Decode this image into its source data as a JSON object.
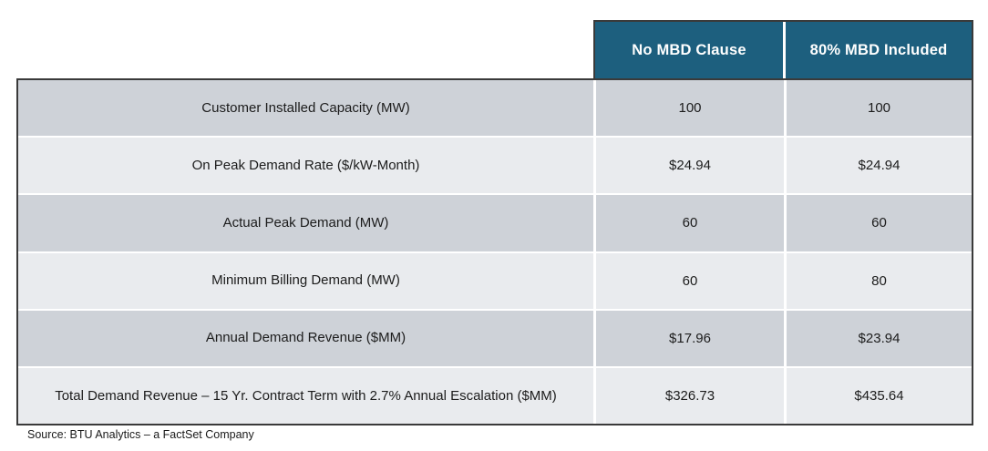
{
  "chart_data": {
    "type": "table",
    "columns": [
      "",
      "No MBD Clause",
      "80% MBD Included"
    ],
    "rows": [
      [
        "Customer Installed Capacity (MW)",
        "100",
        "100"
      ],
      [
        "On Peak Demand Rate ($/kW-Month)",
        "$24.94",
        "$24.94"
      ],
      [
        "Actual Peak Demand (MW)",
        "60",
        "60"
      ],
      [
        "Minimum Billing Demand (MW)",
        "60",
        "80"
      ],
      [
        "Annual Demand Revenue ($MM)",
        "$17.96",
        "$23.94"
      ],
      [
        "Total Demand Revenue – 15 Yr. Contract Term with 2.7% Annual Escalation ($MM)",
        "$326.73",
        "$435.64"
      ]
    ],
    "source": "Source: BTU Analytics – a FactSet Company",
    "layout_hints": {
      "header_position": "top-right over value columns",
      "row_striping": "alternating"
    }
  },
  "colors": {
    "header_bg": "#1d5f7e",
    "header_text": "#ffffff",
    "row_dark": "#ced2d8",
    "row_light": "#e9ebee",
    "border": "#3a3a3a",
    "body_text": "#1c1c1c"
  }
}
